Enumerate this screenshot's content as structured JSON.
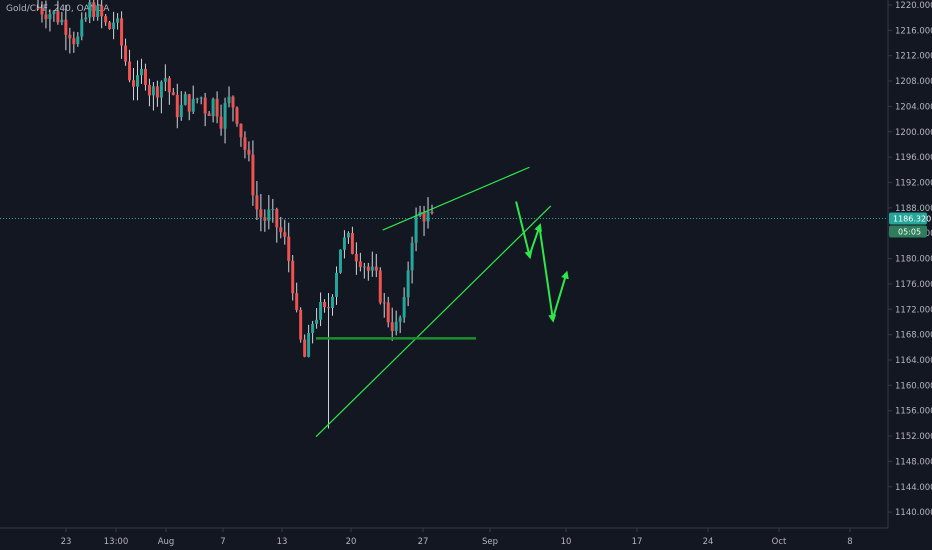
{
  "symbol": "Gold/CHF",
  "interval": "240",
  "source": "OANDA",
  "legend_sep": ", ",
  "last_price_label": "1186.320",
  "countdown_label": "05:05",
  "colors": {
    "background": "#131722",
    "up": "#26a69a",
    "down": "#ef5350",
    "wick": "#d1d4dc",
    "drawing": "#2ee84a",
    "support": "#1b8f2d",
    "price_line": "#26a69a",
    "axis_text": "#b2b5be",
    "axis_border": "#363a45",
    "badge_price": "#26a69a",
    "badge_countdown": "#2e7d5b"
  },
  "chart_data": {
    "type": "candlestick",
    "y_ticks": [
      "1140.000",
      "1144.000",
      "1148.000",
      "1152.000",
      "1156.000",
      "1160.000",
      "1164.000",
      "1168.000",
      "1172.000",
      "1176.000",
      "1180.000",
      "1184.000",
      "1188.000",
      "1192.000",
      "1196.000",
      "1200.000",
      "1204.000",
      "1208.000",
      "1212.000",
      "1216.000",
      "1220.000"
    ],
    "ylim": [
      1137.5,
      1221
    ],
    "x_ticks": [
      "23",
      "13:00",
      "Aug",
      "7",
      "13",
      "20",
      "27",
      "Sep",
      "10",
      "17",
      "24",
      "Oct",
      "8"
    ],
    "price_path": [
      [
        0,
        1219.5
      ],
      [
        0.03,
        1219
      ],
      [
        0.06,
        1218
      ],
      [
        0.09,
        1216
      ],
      [
        0.11,
        1214
      ],
      [
        0.13,
        1217
      ],
      [
        0.15,
        1220
      ],
      [
        0.18,
        1218
      ],
      [
        0.2,
        1216
      ],
      [
        0.22,
        1218
      ],
      [
        0.24,
        1213
      ],
      [
        0.26,
        1209
      ],
      [
        0.28,
        1207
      ],
      [
        0.3,
        1210
      ],
      [
        0.32,
        1206
      ],
      [
        0.34,
        1207
      ],
      [
        0.36,
        1209
      ],
      [
        0.38,
        1205
      ],
      [
        0.4,
        1203
      ],
      [
        0.42,
        1205
      ],
      [
        0.44,
        1204
      ],
      [
        0.46,
        1206
      ],
      [
        0.48,
        1203
      ],
      [
        0.5,
        1205
      ],
      [
        0.52,
        1202
      ],
      [
        0.54,
        1205
      ],
      [
        0.56,
        1204
      ],
      [
        0.58,
        1199
      ],
      [
        0.6,
        1195
      ],
      [
        0.62,
        1188
      ],
      [
        0.64,
        1186
      ],
      [
        0.66,
        1187
      ],
      [
        0.68,
        1185
      ],
      [
        0.7,
        1183
      ],
      [
        0.72,
        1178
      ],
      [
        0.74,
        1168
      ],
      [
        0.76,
        1164
      ],
      [
        0.78,
        1170
      ],
      [
        0.8,
        1172
      ],
      [
        0.82,
        1171
      ],
      [
        0.84,
        1176
      ],
      [
        0.86,
        1182
      ],
      [
        0.88,
        1183
      ],
      [
        0.9,
        1181
      ],
      [
        0.92,
        1180
      ],
      [
        0.94,
        1178
      ],
      [
        0.96,
        1177
      ],
      [
        0.98,
        1173
      ],
      [
        1.0,
        1170
      ],
      [
        1.02,
        1169
      ],
      [
        1.04,
        1172
      ],
      [
        1.06,
        1183
      ],
      [
        1.08,
        1187
      ],
      [
        1.1,
        1187
      ],
      [
        1.12,
        1186
      ]
    ],
    "annotations": {
      "rising_wedge_upper": [
        [
          1.0,
          1184.5
        ],
        [
          3.2,
          1194.4
        ]
      ],
      "rising_wedge_lower": [
        [
          0.0,
          1151.9
        ],
        [
          3.52,
          1188.3
        ]
      ],
      "support_line": [
        [
          0.0,
          1167.4
        ],
        [
          2.4,
          1167.4
        ]
      ],
      "projected_path": [
        [
          3.0,
          1189
        ],
        [
          3.2,
          1180.5
        ],
        [
          3.35,
          1185
        ],
        [
          3.55,
          1170.5
        ],
        [
          3.75,
          1177.5
        ]
      ],
      "last_price": 1186.32
    }
  }
}
